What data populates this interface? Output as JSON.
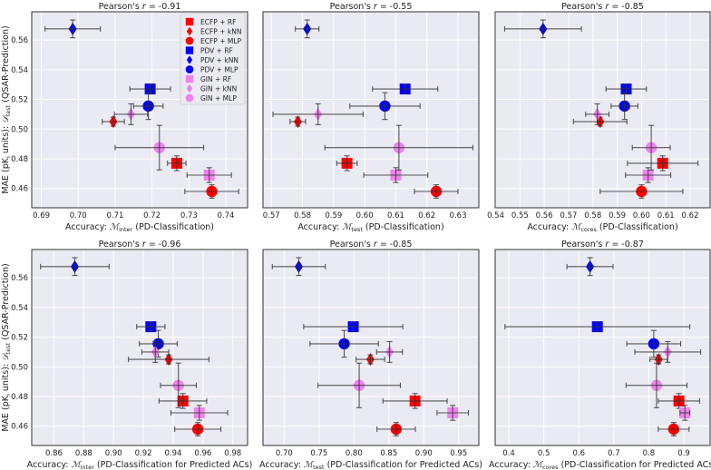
{
  "colors": {
    "ECFP": "#ff0000",
    "PDV": "#0000ff",
    "GIN": "#ee82ee",
    "axes_bg": "#eaeaf2",
    "grid": "#ffffff",
    "errorbar": "#333333"
  },
  "ylabel": {
    "prefix": "MAE (pK",
    "sub1": "i",
    "mid": " units): ",
    "script": "𝒟",
    "sub2": "test",
    "suffix": " (QSAR-Prediction)"
  },
  "legend": {
    "placement": "top-right of first panel",
    "entries": [
      {
        "label": "ECFP + RF",
        "rep": "ECFP",
        "model": "RF"
      },
      {
        "label": "ECFP + kNN",
        "rep": "ECFP",
        "model": "kNN"
      },
      {
        "label": "ECFP + MLP",
        "rep": "ECFP",
        "model": "MLP"
      },
      {
        "label": "PDV + RF",
        "rep": "PDV",
        "model": "RF"
      },
      {
        "label": "PDV + kNN",
        "rep": "PDV",
        "model": "kNN"
      },
      {
        "label": "PDV + MLP",
        "rep": "PDV",
        "model": "MLP"
      },
      {
        "label": "GIN + RF",
        "rep": "GIN",
        "model": "RF"
      },
      {
        "label": "GIN + kNN",
        "rep": "GIN",
        "model": "kNN"
      },
      {
        "label": "GIN + MLP",
        "rep": "GIN",
        "model": "MLP"
      }
    ]
  },
  "chart_data": [
    {
      "type": "scatter",
      "title_prefix": "Pearson's ",
      "title_r": "r",
      "title_value": " = -0.91",
      "xlabel": {
        "prefix": "Accuracy: ",
        "metric": "ℳ",
        "sub": "inter",
        "suffix": " (PD-Classification)"
      },
      "xlim": [
        0.6874,
        0.7459
      ],
      "ylim": [
        0.447,
        0.579
      ],
      "xticks": [
        "0.69",
        "0.70",
        "0.71",
        "0.72",
        "0.73",
        "0.74"
      ],
      "xtick_values": [
        0.69,
        0.7,
        0.71,
        0.72,
        0.73,
        0.74
      ],
      "yticks": [
        "0.46",
        "0.48",
        "0.50",
        "0.52",
        "0.54",
        "0.56"
      ],
      "ytick_values": [
        0.46,
        0.48,
        0.5,
        0.52,
        0.54,
        0.56
      ],
      "show_ytick_labels": true,
      "points": [
        {
          "name": "ECFP + RF",
          "x": 0.7267,
          "xerr": 0.0025,
          "y": 0.477,
          "yerr": 0.005
        },
        {
          "name": "ECFP + kNN",
          "x": 0.7095,
          "xerr": 0.003,
          "y": 0.505,
          "yerr": 0.003
        },
        {
          "name": "ECFP + MLP",
          "x": 0.7362,
          "xerr": 0.0073,
          "y": 0.458,
          "yerr": 0.0045
        },
        {
          "name": "PDV + RF",
          "x": 0.7195,
          "xerr": 0.0055,
          "y": 0.527,
          "yerr": 0.003
        },
        {
          "name": "PDV + kNN",
          "x": 0.6985,
          "xerr": 0.0075,
          "y": 0.5675,
          "yerr": 0.006
        },
        {
          "name": "PDV + MLP",
          "x": 0.719,
          "xerr": 0.004,
          "y": 0.5155,
          "yerr": 0.009
        },
        {
          "name": "GIN + RF",
          "x": 0.7355,
          "xerr": 0.006,
          "y": 0.469,
          "yerr": 0.005
        },
        {
          "name": "GIN + kNN",
          "x": 0.7143,
          "xerr": 0.0045,
          "y": 0.51,
          "yerr": 0.007
        },
        {
          "name": "GIN + MLP",
          "x": 0.722,
          "xerr": 0.012,
          "y": 0.4875,
          "yerr": 0.015
        }
      ]
    },
    {
      "type": "scatter",
      "title_prefix": "Pearson's ",
      "title_r": "r",
      "title_value": " = -0.55",
      "xlabel": {
        "prefix": "Accuracy: ",
        "metric": "ℳ",
        "sub": "test",
        "suffix": " (PD-Classification)"
      },
      "xlim": [
        0.5673,
        0.6367
      ],
      "ylim": [
        0.447,
        0.579
      ],
      "xticks": [
        "0.57",
        "0.58",
        "0.59",
        "0.60",
        "0.61",
        "0.62",
        "0.63"
      ],
      "xtick_values": [
        0.57,
        0.58,
        0.59,
        0.6,
        0.61,
        0.62,
        0.63
      ],
      "yticks": [
        "0.46",
        "0.48",
        "0.50",
        "0.52",
        "0.54",
        "0.56"
      ],
      "ytick_values": [
        0.46,
        0.48,
        0.5,
        0.52,
        0.54,
        0.56
      ],
      "show_ytick_labels": false,
      "points": [
        {
          "name": "ECFP + RF",
          "x": 0.5943,
          "xerr": 0.0033,
          "y": 0.477,
          "yerr": 0.005
        },
        {
          "name": "ECFP + kNN",
          "x": 0.5785,
          "xerr": 0.0025,
          "y": 0.505,
          "yerr": 0.003
        },
        {
          "name": "ECFP + MLP",
          "x": 0.623,
          "xerr": 0.007,
          "y": 0.458,
          "yerr": 0.0045
        },
        {
          "name": "PDV + RF",
          "x": 0.613,
          "xerr": 0.0105,
          "y": 0.527,
          "yerr": 0.003
        },
        {
          "name": "PDV + kNN",
          "x": 0.5815,
          "xerr": 0.0038,
          "y": 0.5675,
          "yerr": 0.006
        },
        {
          "name": "PDV + MLP",
          "x": 0.6065,
          "xerr": 0.0113,
          "y": 0.5155,
          "yerr": 0.009
        },
        {
          "name": "GIN + RF",
          "x": 0.61,
          "xerr": 0.0103,
          "y": 0.469,
          "yerr": 0.005
        },
        {
          "name": "GIN + kNN",
          "x": 0.585,
          "xerr": 0.0145,
          "y": 0.51,
          "yerr": 0.007
        },
        {
          "name": "GIN + MLP",
          "x": 0.611,
          "xerr": 0.0238,
          "y": 0.4875,
          "yerr": 0.015
        }
      ]
    },
    {
      "type": "scatter",
      "title_prefix": "Pearson's ",
      "title_r": "r",
      "title_value": " = -0.85",
      "xlabel": {
        "prefix": "Accuracy: ",
        "metric": "ℳ",
        "sub": "cores",
        "suffix": " (PD-Classification)"
      },
      "xlim": [
        0.5398,
        0.6282
      ],
      "ylim": [
        0.447,
        0.579
      ],
      "xticks": [
        "0.54",
        "0.55",
        "0.56",
        "0.57",
        "0.58",
        "0.59",
        "0.60",
        "0.61",
        "0.62"
      ],
      "xtick_values": [
        0.54,
        0.55,
        0.56,
        0.57,
        0.58,
        0.59,
        0.6,
        0.61,
        0.62
      ],
      "yticks": [
        "0.46",
        "0.48",
        "0.50",
        "0.52",
        "0.54",
        "0.56"
      ],
      "ytick_values": [
        0.46,
        0.48,
        0.5,
        0.52,
        0.54,
        0.56
      ],
      "show_ytick_labels": false,
      "points": [
        {
          "name": "ECFP + RF",
          "x": 0.6087,
          "xerr": 0.0145,
          "y": 0.477,
          "yerr": 0.005
        },
        {
          "name": "ECFP + kNN",
          "x": 0.583,
          "xerr": 0.011,
          "y": 0.505,
          "yerr": 0.003
        },
        {
          "name": "ECFP + MLP",
          "x": 0.6,
          "xerr": 0.017,
          "y": 0.458,
          "yerr": 0.0045
        },
        {
          "name": "PDV + RF",
          "x": 0.5937,
          "xerr": 0.0083,
          "y": 0.527,
          "yerr": 0.003
        },
        {
          "name": "PDV + kNN",
          "x": 0.5595,
          "xerr": 0.0158,
          "y": 0.5675,
          "yerr": 0.006
        },
        {
          "name": "PDV + MLP",
          "x": 0.593,
          "xerr": 0.0055,
          "y": 0.5155,
          "yerr": 0.009
        },
        {
          "name": "GIN + RF",
          "x": 0.6027,
          "xerr": 0.0093,
          "y": 0.469,
          "yerr": 0.005
        },
        {
          "name": "GIN + kNN",
          "x": 0.5818,
          "xerr": 0.0048,
          "y": 0.51,
          "yerr": 0.007
        },
        {
          "name": "GIN + MLP",
          "x": 0.604,
          "xerr": 0.0078,
          "y": 0.4875,
          "yerr": 0.015
        }
      ]
    },
    {
      "type": "scatter",
      "title_prefix": "Pearson's ",
      "title_r": "r",
      "title_value": " = -0.96",
      "xlabel": {
        "prefix": "Accuracy: ",
        "metric": "ℳ",
        "sub": "inter",
        "suffix": " (PD-Classification for Predicted ACs)"
      },
      "xlim": [
        0.8451,
        0.9899
      ],
      "ylim": [
        0.447,
        0.579
      ],
      "xticks": [
        "0.86",
        "0.88",
        "0.90",
        "0.92",
        "0.94",
        "0.96",
        "0.98"
      ],
      "xtick_values": [
        0.86,
        0.88,
        0.9,
        0.92,
        0.94,
        0.96,
        0.98
      ],
      "yticks": [
        "0.46",
        "0.48",
        "0.50",
        "0.52",
        "0.54",
        "0.56"
      ],
      "ytick_values": [
        0.46,
        0.48,
        0.5,
        0.52,
        0.54,
        0.56
      ],
      "show_ytick_labels": true,
      "points": [
        {
          "name": "ECFP + RF",
          "x": 0.9465,
          "xerr": 0.016,
          "y": 0.477,
          "yerr": 0.005
        },
        {
          "name": "ECFP + kNN",
          "x": 0.937,
          "xerr": 0.027,
          "y": 0.505,
          "yerr": 0.003
        },
        {
          "name": "ECFP + MLP",
          "x": 0.9565,
          "xerr": 0.0155,
          "y": 0.458,
          "yerr": 0.0045
        },
        {
          "name": "PDV + RF",
          "x": 0.925,
          "xerr": 0.0095,
          "y": 0.527,
          "yerr": 0.003
        },
        {
          "name": "PDV + kNN",
          "x": 0.874,
          "xerr": 0.023,
          "y": 0.5675,
          "yerr": 0.006
        },
        {
          "name": "PDV + MLP",
          "x": 0.93,
          "xerr": 0.0127,
          "y": 0.5155,
          "yerr": 0.009
        },
        {
          "name": "GIN + RF",
          "x": 0.9575,
          "xerr": 0.019,
          "y": 0.469,
          "yerr": 0.005
        },
        {
          "name": "GIN + kNN",
          "x": 0.928,
          "xerr": 0.009,
          "y": 0.51,
          "yerr": 0.007
        },
        {
          "name": "GIN + MLP",
          "x": 0.9435,
          "xerr": 0.012,
          "y": 0.4875,
          "yerr": 0.015
        }
      ]
    },
    {
      "type": "scatter",
      "title_prefix": "Pearson's ",
      "title_r": "r",
      "title_value": " = -0.85",
      "xlabel": {
        "prefix": "Accuracy: ",
        "metric": "ℳ",
        "sub": "test",
        "suffix": " (PD-Classification for Predicted ACs)"
      },
      "xlim": [
        0.6697,
        0.9789
      ],
      "ylim": [
        0.447,
        0.579
      ],
      "xticks": [
        "0.70",
        "0.75",
        "0.80",
        "0.85",
        "0.90",
        "0.95"
      ],
      "xtick_values": [
        0.7,
        0.75,
        0.8,
        0.85,
        0.9,
        0.95
      ],
      "yticks": [
        "0.46",
        "0.48",
        "0.50",
        "0.52",
        "0.54",
        "0.56"
      ],
      "ytick_values": [
        0.46,
        0.48,
        0.5,
        0.52,
        0.54,
        0.56
      ],
      "show_ytick_labels": false,
      "points": [
        {
          "name": "ECFP + RF",
          "x": 0.8875,
          "xerr": 0.046,
          "y": 0.477,
          "yerr": 0.005
        },
        {
          "name": "ECFP + kNN",
          "x": 0.8235,
          "xerr": 0.0205,
          "y": 0.505,
          "yerr": 0.003
        },
        {
          "name": "ECFP + MLP",
          "x": 0.8605,
          "xerr": 0.0275,
          "y": 0.458,
          "yerr": 0.0045
        },
        {
          "name": "PDV + RF",
          "x": 0.799,
          "xerr": 0.071,
          "y": 0.527,
          "yerr": 0.003
        },
        {
          "name": "PDV + kNN",
          "x": 0.721,
          "xerr": 0.038,
          "y": 0.5675,
          "yerr": 0.006
        },
        {
          "name": "PDV + MLP",
          "x": 0.786,
          "xerr": 0.049,
          "y": 0.5155,
          "yerr": 0.009
        },
        {
          "name": "GIN + RF",
          "x": 0.9415,
          "xerr": 0.0225,
          "y": 0.469,
          "yerr": 0.005
        },
        {
          "name": "GIN + kNN",
          "x": 0.851,
          "xerr": 0.0185,
          "y": 0.51,
          "yerr": 0.007
        },
        {
          "name": "GIN + MLP",
          "x": 0.8075,
          "xerr": 0.059,
          "y": 0.4875,
          "yerr": 0.015
        }
      ]
    },
    {
      "type": "scatter",
      "title_prefix": "Pearson's ",
      "title_r": "r",
      "title_value": " = -0.87",
      "xlabel": {
        "prefix": "Accuracy: ",
        "metric": "ℳ",
        "sub": "cores",
        "suffix": " (PD-Classification for Predicted ACs)"
      },
      "xlim": [
        0.361,
        0.975
      ],
      "ylim": [
        0.447,
        0.579
      ],
      "xticks": [
        "0.4",
        "0.5",
        "0.6",
        "0.7",
        "0.8",
        "0.9"
      ],
      "xtick_values": [
        0.4,
        0.5,
        0.6,
        0.7,
        0.8,
        0.9
      ],
      "yticks": [
        "0.46",
        "0.48",
        "0.50",
        "0.52",
        "0.54",
        "0.56"
      ],
      "ytick_values": [
        0.46,
        0.48,
        0.5,
        0.52,
        0.54,
        0.56
      ],
      "show_ytick_labels": false,
      "points": [
        {
          "name": "ECFP + RF",
          "x": 0.886,
          "xerr": 0.059,
          "y": 0.477,
          "yerr": 0.005
        },
        {
          "name": "ECFP + kNN",
          "x": 0.828,
          "xerr": 0.025,
          "y": 0.505,
          "yerr": 0.003
        },
        {
          "name": "ECFP + MLP",
          "x": 0.871,
          "xerr": 0.044,
          "y": 0.458,
          "yerr": 0.0045
        },
        {
          "name": "PDV + RF",
          "x": 0.653,
          "xerr": 0.264,
          "y": 0.527,
          "yerr": 0.003
        },
        {
          "name": "PDV + kNN",
          "x": 0.632,
          "xerr": 0.066,
          "y": 0.5675,
          "yerr": 0.006
        },
        {
          "name": "PDV + MLP",
          "x": 0.814,
          "xerr": 0.077,
          "y": 0.5155,
          "yerr": 0.009
        },
        {
          "name": "GIN + RF",
          "x": 0.903,
          "xerr": 0.014,
          "y": 0.469,
          "yerr": 0.005
        },
        {
          "name": "GIN + kNN",
          "x": 0.854,
          "xerr": 0.094,
          "y": 0.51,
          "yerr": 0.007
        },
        {
          "name": "GIN + MLP",
          "x": 0.822,
          "xerr": 0.087,
          "y": 0.4875,
          "yerr": 0.015
        }
      ]
    }
  ]
}
